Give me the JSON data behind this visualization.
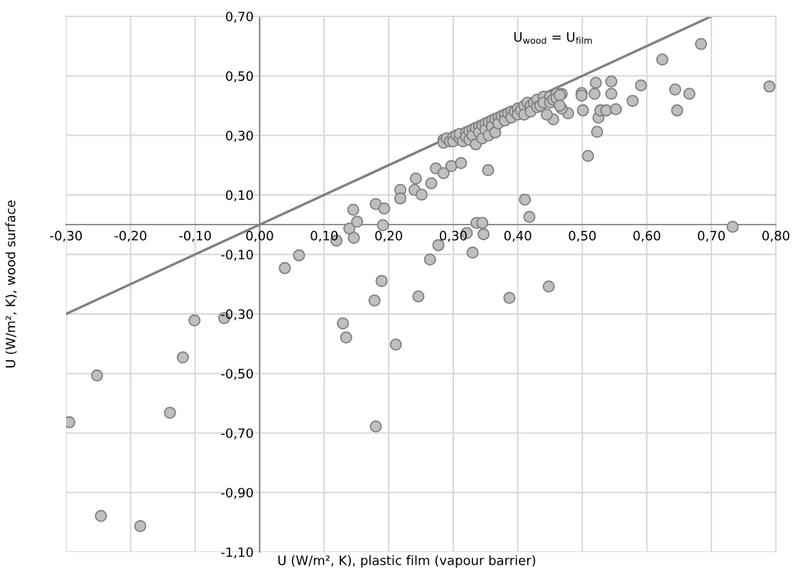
{
  "chart_data": {
    "type": "scatter",
    "xlabel": "U (W/m², K), plastic film (vapour barrier)",
    "ylabel": "U (W/m², K), wood surface",
    "xlim": [
      -0.3,
      0.8
    ],
    "ylim": [
      -1.1,
      0.7
    ],
    "xticks": [
      {
        "value": -0.3,
        "label": "-0,30"
      },
      {
        "value": -0.2,
        "label": "-0,20"
      },
      {
        "value": -0.1,
        "label": "-0,10"
      },
      {
        "value": 0.0,
        "label": "0,00"
      },
      {
        "value": 0.1,
        "label": "0,10"
      },
      {
        "value": 0.2,
        "label": "0,20"
      },
      {
        "value": 0.3,
        "label": "0,30"
      },
      {
        "value": 0.4,
        "label": "0,40"
      },
      {
        "value": 0.5,
        "label": "0,50"
      },
      {
        "value": 0.6,
        "label": "0,60"
      },
      {
        "value": 0.7,
        "label": "0,70"
      },
      {
        "value": 0.8,
        "label": "0,80"
      }
    ],
    "yticks": [
      {
        "value": -1.1,
        "label": "-1,10"
      },
      {
        "value": -0.9,
        "label": "-0,90"
      },
      {
        "value": -0.7,
        "label": "-0,70"
      },
      {
        "value": -0.5,
        "label": "-0,50"
      },
      {
        "value": -0.3,
        "label": "-0,30"
      },
      {
        "value": -0.1,
        "label": "-0,10"
      },
      {
        "value": 0.1,
        "label": "0,10"
      },
      {
        "value": 0.3,
        "label": "0,30"
      },
      {
        "value": 0.5,
        "label": "0,50"
      },
      {
        "value": 0.7,
        "label": "0,70"
      }
    ],
    "grid": true,
    "series": [
      {
        "color": "#bfbfbf",
        "marker": "circle",
        "x": [
          -0.295,
          -0.252,
          -0.246,
          -0.185,
          -0.139,
          -0.119,
          -0.101,
          -0.055,
          0.129,
          0.134,
          0.039,
          0.061,
          0.119,
          0.139,
          0.145,
          0.146,
          0.151,
          0.18,
          0.193,
          0.191,
          0.218,
          0.218,
          0.242,
          0.24,
          0.251,
          0.266,
          0.273,
          0.285,
          0.297,
          0.312,
          0.354,
          0.509,
          0.523,
          0.525,
          0.528,
          0.537,
          0.552,
          0.501,
          0.499,
          0.499,
          0.519,
          0.521,
          0.545,
          0.545,
          0.578,
          0.591,
          0.478,
          0.455,
          0.468,
          0.468,
          0.411,
          0.418,
          0.336,
          0.345,
          0.321,
          0.347,
          0.277,
          0.33,
          0.264,
          0.189,
          0.448,
          0.178,
          0.246,
          0.387,
          0.211,
          0.18,
          0.684,
          0.624,
          0.644,
          0.666,
          0.647,
          0.79,
          0.733,
          0.285,
          0.285,
          0.29,
          0.295,
          0.3,
          0.3,
          0.305,
          0.31,
          0.31,
          0.315,
          0.32,
          0.32,
          0.325,
          0.325,
          0.33,
          0.33,
          0.335,
          0.335,
          0.34,
          0.34,
          0.345,
          0.345,
          0.35,
          0.35,
          0.355,
          0.355,
          0.36,
          0.36,
          0.365,
          0.365,
          0.37,
          0.37,
          0.375,
          0.38,
          0.38,
          0.385,
          0.39,
          0.39,
          0.395,
          0.4,
          0.4,
          0.405,
          0.41,
          0.41,
          0.415,
          0.42,
          0.42,
          0.425,
          0.43,
          0.43,
          0.435,
          0.44,
          0.44,
          0.445,
          0.45,
          0.45,
          0.455,
          0.46,
          0.46,
          0.465,
          0.465
        ],
        "values": [
          -0.664,
          -0.507,
          -0.979,
          -1.013,
          -0.632,
          -0.446,
          -0.322,
          -0.314,
          -0.332,
          -0.379,
          -0.146,
          -0.103,
          -0.054,
          -0.013,
          0.05,
          -0.044,
          0.01,
          0.069,
          0.054,
          -0.002,
          0.117,
          0.088,
          0.155,
          0.117,
          0.101,
          0.139,
          0.189,
          0.173,
          0.197,
          0.207,
          0.183,
          0.231,
          0.312,
          0.36,
          0.384,
          0.384,
          0.388,
          0.384,
          0.442,
          0.434,
          0.44,
          0.477,
          0.481,
          0.44,
          0.416,
          0.468,
          0.374,
          0.354,
          0.39,
          0.439,
          0.084,
          0.026,
          0.006,
          0.006,
          -0.028,
          -0.032,
          -0.069,
          -0.094,
          -0.117,
          -0.189,
          -0.208,
          -0.255,
          -0.241,
          -0.246,
          -0.403,
          -0.678,
          0.607,
          0.555,
          0.454,
          0.44,
          0.384,
          0.464,
          -0.007,
          0.285,
          0.275,
          0.29,
          0.28,
          0.295,
          0.28,
          0.3,
          0.29,
          0.305,
          0.28,
          0.31,
          0.295,
          0.315,
          0.285,
          0.32,
          0.3,
          0.325,
          0.27,
          0.33,
          0.31,
          0.335,
          0.29,
          0.34,
          0.32,
          0.345,
          0.3,
          0.35,
          0.33,
          0.355,
          0.31,
          0.36,
          0.34,
          0.365,
          0.37,
          0.35,
          0.375,
          0.38,
          0.36,
          0.38,
          0.39,
          0.37,
          0.385,
          0.4,
          0.37,
          0.41,
          0.4,
          0.38,
          0.41,
          0.42,
          0.395,
          0.4,
          0.43,
          0.41,
          0.37,
          0.43,
          0.41,
          0.42,
          0.44,
          0.425,
          0.435,
          0.4
        ]
      },
      {
        "type": "line",
        "name": "U$_{wood}$ = U$_{film}$",
        "color": "#808080",
        "x": [
          -0.3,
          0.7
        ],
        "values": [
          -0.3,
          0.7
        ]
      }
    ]
  }
}
